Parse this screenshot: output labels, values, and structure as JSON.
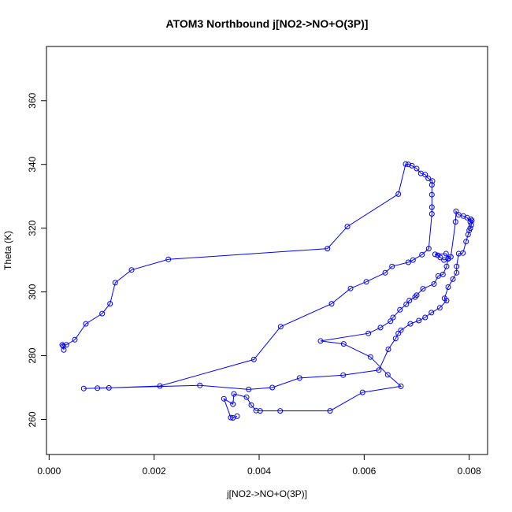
{
  "chart_data": {
    "type": "scatter",
    "title": "ATOM3 Northbound j[NO2->NO+O(3P)]",
    "xlabel": "j[NO2->NO+O(3P)]",
    "ylabel": "Theta (K)",
    "xlim": [
      -5e-05,
      0.00835
    ],
    "ylim": [
      249,
      377
    ],
    "xticks": [
      0.0,
      0.002,
      0.004,
      0.006,
      0.008
    ],
    "xtick_labels": [
      "0.000",
      "0.002",
      "0.004",
      "0.006",
      "0.008"
    ],
    "yticks": [
      260,
      280,
      300,
      320,
      340,
      360
    ],
    "ytick_labels": [
      "260",
      "280",
      "300",
      "320",
      "340",
      "360"
    ],
    "grid": false,
    "legend": "none",
    "series": [
      {
        "marker": "open-circle",
        "line": true,
        "color": "#0000ff",
        "points": [
          [
            0.00028,
            281.8
          ],
          [
            0.00027,
            283.0
          ],
          [
            0.00025,
            283.4
          ],
          [
            0.00033,
            283.4
          ],
          [
            0.00049,
            285.0
          ],
          [
            0.0007,
            290.0
          ],
          [
            0.00101,
            293.2
          ],
          [
            0.00116,
            296.3
          ],
          [
            0.00126,
            302.9
          ],
          [
            0.00157,
            306.9
          ],
          [
            0.00227,
            310.2
          ],
          [
            0.0053,
            313.6
          ],
          [
            0.00568,
            320.5
          ],
          [
            0.00665,
            330.7
          ],
          [
            0.00679,
            340.1
          ],
          [
            0.00684,
            340.0
          ],
          [
            0.00691,
            339.6
          ],
          [
            0.007,
            338.7
          ],
          [
            0.00708,
            337.2
          ],
          [
            0.00716,
            336.8
          ],
          [
            0.00722,
            335.6
          ],
          [
            0.0073,
            334.8
          ],
          [
            0.00729,
            333.6
          ],
          [
            0.00729,
            330.5
          ],
          [
            0.00729,
            326.6
          ],
          [
            0.00729,
            324.5
          ],
          [
            0.00723,
            313.6
          ],
          [
            0.0071,
            311.7
          ],
          [
            0.00693,
            310.0
          ],
          [
            0.00684,
            309.3
          ],
          [
            0.00653,
            308.0
          ],
          [
            0.0064,
            306.0
          ],
          [
            0.00604,
            303.2
          ],
          [
            0.00574,
            301.1
          ],
          [
            0.00538,
            296.3
          ],
          [
            0.00441,
            289.1
          ],
          [
            0.0039,
            278.8
          ],
          [
            0.00211,
            270.5
          ],
          [
            0.00114,
            269.9
          ],
          [
            0.00092,
            269.8
          ],
          [
            0.00066,
            269.7
          ],
          [
            0.00287,
            270.7
          ],
          [
            0.0038,
            269.4
          ],
          [
            0.00425,
            270.0
          ],
          [
            0.00477,
            273.0
          ],
          [
            0.0056,
            273.9
          ],
          [
            0.00628,
            275.5
          ],
          [
            0.00646,
            282.0
          ],
          [
            0.0066,
            285.4
          ],
          [
            0.00665,
            287.0
          ],
          [
            0.0067,
            288.0
          ],
          [
            0.00688,
            290.0
          ],
          [
            0.00704,
            291.0
          ],
          [
            0.00716,
            292.0
          ],
          [
            0.00728,
            293.5
          ],
          [
            0.00744,
            295.0
          ],
          [
            0.00757,
            297.3
          ],
          [
            0.00753,
            298.0
          ],
          [
            0.0076,
            301.5
          ],
          [
            0.00769,
            304.0
          ],
          [
            0.00776,
            306.0
          ],
          [
            0.00776,
            308.0
          ],
          [
            0.0078,
            312.0
          ],
          [
            0.00788,
            312.2
          ],
          [
            0.00794,
            315.8
          ],
          [
            0.00798,
            318.0
          ],
          [
            0.008,
            319.3
          ],
          [
            0.00802,
            320.0
          ],
          [
            0.00804,
            321.0
          ],
          [
            0.00805,
            322.4
          ],
          [
            0.00803,
            322.8
          ],
          [
            0.00802,
            322.0
          ],
          [
            0.00796,
            323.3
          ],
          [
            0.00789,
            323.8
          ],
          [
            0.0078,
            324.2
          ],
          [
            0.00775,
            325.3
          ],
          [
            0.00774,
            322.0
          ],
          [
            0.00765,
            311.0
          ],
          [
            0.0076,
            310.4
          ],
          [
            0.00752,
            310.0
          ],
          [
            0.00745,
            310.8
          ],
          [
            0.0074,
            311.5
          ],
          [
            0.00735,
            311.8
          ],
          [
            0.00756,
            312.0
          ],
          [
            0.0076,
            310.5
          ],
          [
            0.00757,
            308.0
          ],
          [
            0.0075,
            305.5
          ],
          [
            0.00741,
            305.0
          ],
          [
            0.00733,
            302.5
          ],
          [
            0.00712,
            301.0
          ],
          [
            0.007,
            299.0
          ],
          [
            0.00697,
            298.4
          ],
          [
            0.00686,
            297.3
          ],
          [
            0.0068,
            296.1
          ],
          [
            0.00668,
            294.4
          ],
          [
            0.00655,
            292.0
          ],
          [
            0.0065,
            290.8
          ],
          [
            0.00631,
            288.8
          ],
          [
            0.00608,
            287.0
          ],
          [
            0.00517,
            284.6
          ],
          [
            0.00561,
            283.7
          ],
          [
            0.00612,
            279.6
          ],
          [
            0.00645,
            274.0
          ],
          [
            0.0067,
            270.4
          ],
          [
            0.00597,
            268.5
          ],
          [
            0.00535,
            262.7
          ],
          [
            0.0044,
            262.7
          ],
          [
            0.00402,
            262.7
          ],
          [
            0.00394,
            262.8
          ],
          [
            0.00385,
            264.5
          ],
          [
            0.00376,
            267.0
          ],
          [
            0.00352,
            268.0
          ],
          [
            0.0035,
            264.8
          ],
          [
            0.00333,
            266.5
          ],
          [
            0.00346,
            260.6
          ],
          [
            0.0035,
            260.5
          ],
          [
            0.00358,
            261.0
          ]
        ]
      }
    ]
  }
}
